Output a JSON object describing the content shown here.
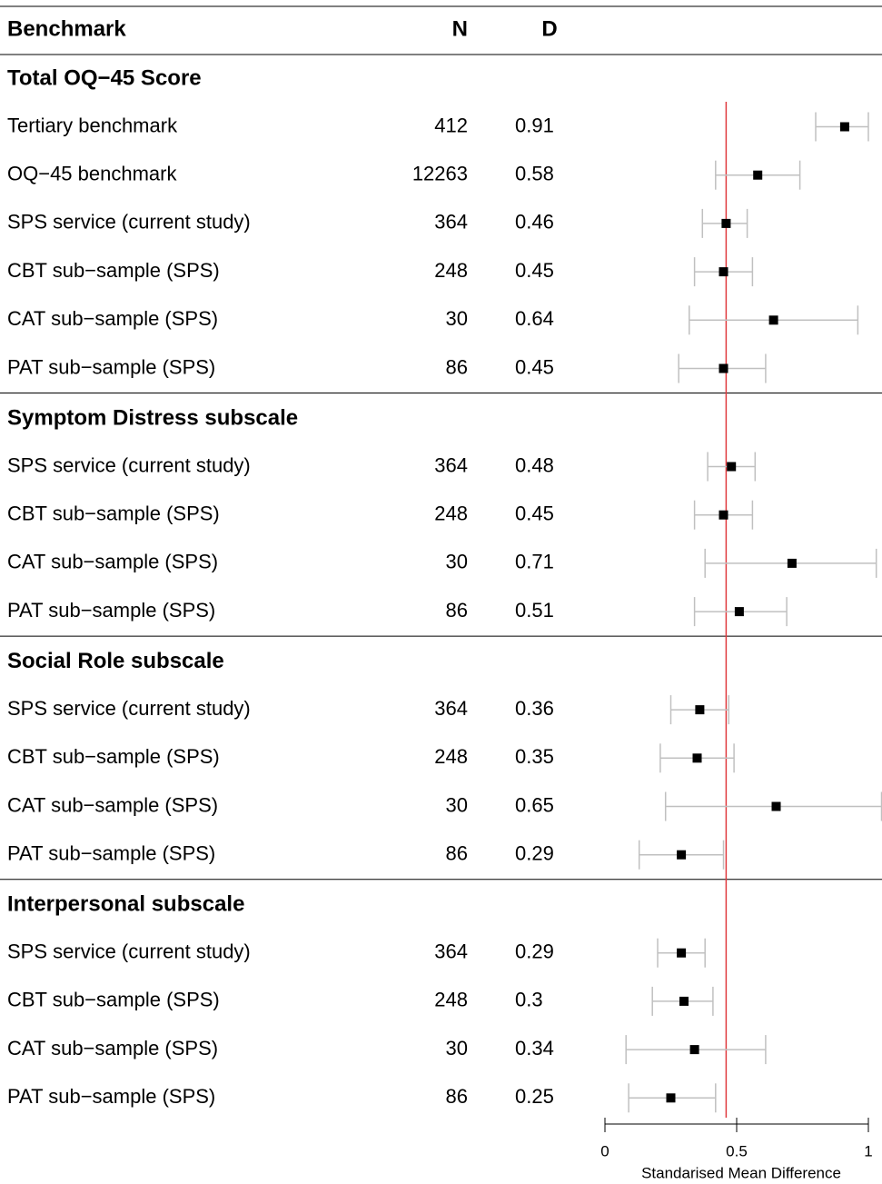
{
  "chart_data": {
    "type": "forest",
    "columns": [
      "Benchmark",
      "N",
      "D"
    ],
    "xlabel": "Standarised Mean Difference",
    "xlim": [
      0,
      1
    ],
    "xticks": [
      0,
      0.5,
      1
    ],
    "reference_line": 0.46,
    "reference_color": "#e0393e",
    "marker_color": "#000000",
    "ci_color": "#c0c0c0",
    "groups": [
      {
        "title": "Total OQ−45 Score",
        "rows": [
          {
            "label": "Tertiary benchmark",
            "n": 412,
            "d": 0.91,
            "lo": 0.8,
            "hi": 1.0
          },
          {
            "label": "OQ−45 benchmark",
            "n": 12263,
            "d": 0.58,
            "lo": 0.42,
            "hi": 0.74
          },
          {
            "label": "SPS service (current study)",
            "n": 364,
            "d": 0.46,
            "lo": 0.37,
            "hi": 0.54
          },
          {
            "label": "CBT sub−sample (SPS)",
            "n": 248,
            "d": 0.45,
            "lo": 0.34,
            "hi": 0.56
          },
          {
            "label": "CAT sub−sample  (SPS)",
            "n": 30,
            "d": 0.64,
            "lo": 0.32,
            "hi": 0.96
          },
          {
            "label": "PAT sub−sample  (SPS)",
            "n": 86,
            "d": 0.45,
            "lo": 0.28,
            "hi": 0.61
          }
        ]
      },
      {
        "title": "Symptom Distress subscale",
        "rows": [
          {
            "label": "SPS service (current study)",
            "n": 364,
            "d": 0.48,
            "lo": 0.39,
            "hi": 0.57
          },
          {
            "label": "CBT sub−sample (SPS)",
            "n": 248,
            "d": 0.45,
            "lo": 0.34,
            "hi": 0.56
          },
          {
            "label": "CAT sub−sample  (SPS)",
            "n": 30,
            "d": 0.71,
            "lo": 0.38,
            "hi": 1.03
          },
          {
            "label": "PAT sub−sample  (SPS)",
            "n": 86,
            "d": 0.51,
            "lo": 0.34,
            "hi": 0.69
          }
        ]
      },
      {
        "title": "Social Role subscale",
        "rows": [
          {
            "label": "SPS service (current study)",
            "n": 364,
            "d": 0.36,
            "lo": 0.25,
            "hi": 0.47
          },
          {
            "label": "CBT sub−sample (SPS)",
            "n": 248,
            "d": 0.35,
            "lo": 0.21,
            "hi": 0.49
          },
          {
            "label": "CAT sub−sample  (SPS)",
            "n": 30,
            "d": 0.65,
            "lo": 0.23,
            "hi": 1.05
          },
          {
            "label": "PAT sub−sample  (SPS)",
            "n": 86,
            "d": 0.29,
            "lo": 0.13,
            "hi": 0.45
          }
        ]
      },
      {
        "title": "Interpersonal subscale",
        "rows": [
          {
            "label": "SPS service (current study)",
            "n": 364,
            "d": 0.29,
            "lo": 0.2,
            "hi": 0.38
          },
          {
            "label": "CBT sub−sample (SPS)",
            "n": 248,
            "d": 0.3,
            "lo": 0.18,
            "hi": 0.41
          },
          {
            "label": "CAT sub−sample  (SPS)",
            "n": 30,
            "d": 0.34,
            "lo": 0.08,
            "hi": 0.61
          },
          {
            "label": "PAT sub−sample  (SPS)",
            "n": 86,
            "d": 0.25,
            "lo": 0.09,
            "hi": 0.42
          }
        ]
      }
    ]
  }
}
